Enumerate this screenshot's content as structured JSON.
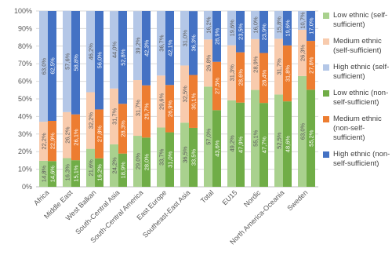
{
  "chart_data": {
    "type": "bar",
    "categories": [
      "Africa",
      "Middle East",
      "West Balkan",
      "South-Central Asia",
      "South-Central America",
      "East Europe",
      "Southeast-East Asia",
      "Total",
      "EU15",
      "Nordic",
      "North America-Oceania",
      "Sweden"
    ],
    "series": [
      {
        "name": "Low ethnic (self-sufficient)",
        "color": "#a9d18e",
        "values": [
          14.8,
          16.3,
          21.6,
          24.2,
          29.0,
          33.7,
          36.5,
          57.0,
          49.2,
          55.1,
          52.5,
          63.0
        ],
        "value_labels": [
          "14,8%",
          "16,3%",
          "21,6%",
          "24,2%",
          "29,0%",
          "33,7%",
          "36,5%",
          "57,0%",
          "49,2%",
          "55,1%",
          "52,5%",
          "63,0%"
        ]
      },
      {
        "name": "Medium ethnic (self-sufficient)",
        "color": "#f8cbad",
        "values": [
          22.2,
          26.2,
          32.2,
          31.7,
          31.7,
          29.6,
          32.5,
          26.8,
          31.3,
          28.9,
          31.7,
          26.3
        ],
        "value_labels": [
          "22,2%",
          "26,2%",
          "32,2%",
          "31,7%",
          "31,7%",
          "29,6%",
          "32,5%",
          "26,8%",
          "31,3%",
          "28,9%",
          "31,7%",
          "26,3%"
        ]
      },
      {
        "name": "High ethnic (self-sufficient)",
        "color": "#b4c7e7",
        "values": [
          63.0,
          57.6,
          46.2,
          44.0,
          39.2,
          36.7,
          31.0,
          16.2,
          19.6,
          16.0,
          15.8,
          10.7
        ],
        "value_labels": [
          "63,0%",
          "57,6%",
          "46,2%",
          "44,0%",
          "39,2%",
          "36,7%",
          "31,0%",
          "16,2%",
          "19,6%",
          "16,0%",
          "15,8%",
          "10,7%"
        ]
      },
      {
        "name": "Low ethnic (non-self-sufficient)",
        "color": "#70ad47",
        "values": [
          14.6,
          15.1,
          16.2,
          18.9,
          28.0,
          31.0,
          33.5,
          43.6,
          47.9,
          47.7,
          48.6,
          55.2
        ],
        "value_labels": [
          "14,6%",
          "15,1%",
          "16,2%",
          "18,9%",
          "28,0%",
          "31,0%",
          "33,5%",
          "43,6%",
          "47,9%",
          "47,7%",
          "48,6%",
          "55,2%"
        ]
      },
      {
        "name": "Medium ethnic (non-self-sufficient)",
        "color": "#ed7d31",
        "values": [
          22.9,
          26.1,
          27.8,
          28.3,
          29.7,
          26.9,
          30.1,
          27.5,
          28.6,
          28.4,
          31.8,
          27.8
        ],
        "value_labels": [
          "22,9%",
          "26,1%",
          "27,8%",
          "28,3%",
          "29,7%",
          "26,9%",
          "30,1%",
          "27,5%",
          "28,6%",
          "28,4%",
          "31,8%",
          "27,8%"
        ]
      },
      {
        "name": "High ethnic (non-self-sufficient)",
        "color": "#4472c4",
        "values": [
          62.5,
          58.8,
          56.0,
          52.8,
          42.3,
          42.1,
          36.3,
          28.9,
          23.5,
          23.9,
          19.6,
          17.0
        ],
        "value_labels": [
          "62,5%",
          "58,8%",
          "56,0%",
          "52,8%",
          "42,3%",
          "42,1%",
          "36,3%",
          "28,9%",
          "23,5%",
          "23,9%",
          "19,6%",
          "17,0%"
        ]
      }
    ],
    "ylim": [
      0,
      100
    ],
    "yticks": [
      {
        "value": 0,
        "label": "0%"
      },
      {
        "value": 10,
        "label": "10%"
      },
      {
        "value": 20,
        "label": "20%"
      },
      {
        "value": 30,
        "label": "30%"
      },
      {
        "value": 40,
        "label": "40%"
      },
      {
        "value": 50,
        "label": "50%"
      },
      {
        "value": 60,
        "label": "60%"
      },
      {
        "value": 70,
        "label": "70%"
      },
      {
        "value": 80,
        "label": "80%"
      },
      {
        "value": 90,
        "label": "90%"
      },
      {
        "value": 100,
        "label": "100%"
      }
    ],
    "grid": true,
    "legend": "right"
  }
}
